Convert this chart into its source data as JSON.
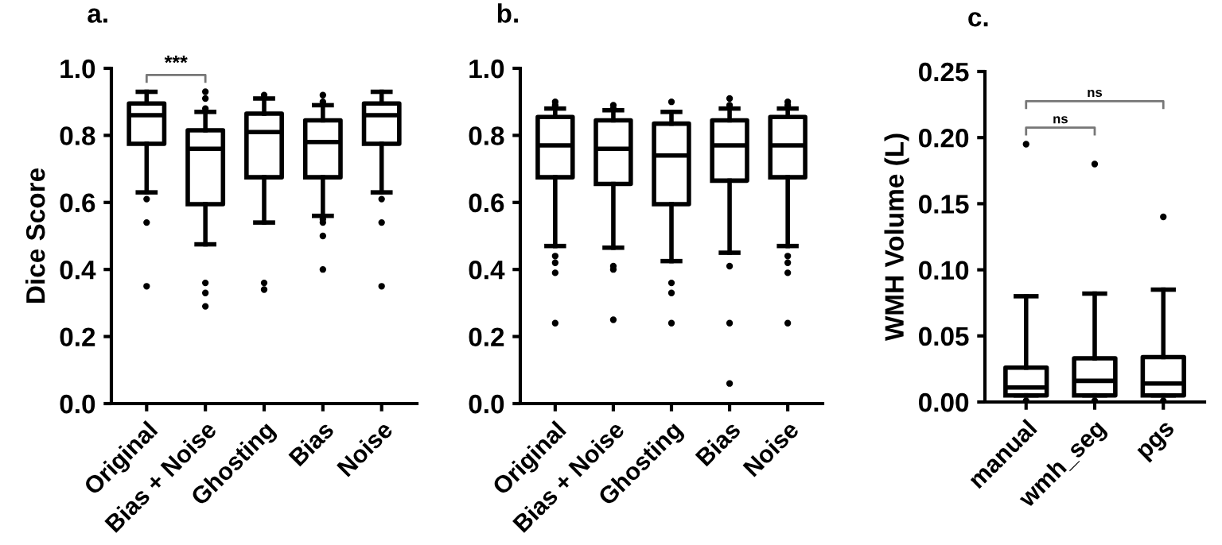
{
  "chart_data": [
    {
      "type": "box",
      "title": "a.",
      "ylabel": "Dice Score",
      "categories": [
        "Original",
        "Bias + Noise",
        "Ghosting",
        "Bias",
        "Noise"
      ],
      "ylim": [
        0,
        1.0
      ],
      "yticks": [
        {
          "value": 0,
          "label": "0.0"
        },
        0.2,
        0.4,
        0.6,
        0.8,
        {
          "value": 1,
          "label": "1.0"
        }
      ],
      "grid": false,
      "annotations": [
        "***"
      ],
      "boxes": [
        {
          "low": 0.63,
          "q1": 0.775,
          "median": 0.86,
          "q3": 0.895,
          "high": 0.93,
          "outliers": [
            0.61,
            0.54,
            0.35
          ]
        },
        {
          "low": 0.475,
          "q1": 0.595,
          "median": 0.76,
          "q3": 0.815,
          "high": 0.87,
          "outliers": [
            0.93,
            0.91,
            0.88,
            0.36,
            0.33,
            0.29
          ]
        },
        {
          "low": 0.54,
          "q1": 0.675,
          "median": 0.81,
          "q3": 0.865,
          "high": 0.91,
          "outliers": [
            0.92,
            0.36,
            0.34
          ]
        },
        {
          "low": 0.56,
          "q1": 0.675,
          "median": 0.78,
          "q3": 0.845,
          "high": 0.89,
          "outliers": [
            0.92,
            0.9,
            0.55,
            0.54,
            0.5,
            0.4
          ]
        },
        {
          "low": 0.63,
          "q1": 0.775,
          "median": 0.86,
          "q3": 0.895,
          "high": 0.93,
          "outliers": [
            0.61,
            0.54,
            0.35
          ]
        }
      ]
    },
    {
      "type": "box",
      "title": "b.",
      "categories": [
        "Original",
        "Bias + Noise",
        "Ghosting",
        "Bias",
        "Noise"
      ],
      "ylim": [
        0,
        1.0
      ],
      "yticks": [
        {
          "value": 0,
          "label": "0.0"
        },
        0.2,
        0.4,
        0.6,
        0.8,
        {
          "value": 1,
          "label": "1.0"
        }
      ],
      "grid": false,
      "boxes": [
        {
          "low": 0.47,
          "q1": 0.675,
          "median": 0.77,
          "q3": 0.855,
          "high": 0.88,
          "outliers": [
            0.9,
            0.89,
            0.44,
            0.42,
            0.39,
            0.24
          ]
        },
        {
          "low": 0.465,
          "q1": 0.655,
          "median": 0.76,
          "q3": 0.845,
          "high": 0.875,
          "outliers": [
            0.89,
            0.88,
            0.41,
            0.4,
            0.25
          ]
        },
        {
          "low": 0.425,
          "q1": 0.595,
          "median": 0.74,
          "q3": 0.835,
          "high": 0.87,
          "outliers": [
            0.9,
            0.36,
            0.33,
            0.24
          ]
        },
        {
          "low": 0.45,
          "q1": 0.665,
          "median": 0.77,
          "q3": 0.845,
          "high": 0.88,
          "outliers": [
            0.91,
            0.89,
            0.41,
            0.24,
            0.06
          ]
        },
        {
          "low": 0.47,
          "q1": 0.675,
          "median": 0.77,
          "q3": 0.855,
          "high": 0.88,
          "outliers": [
            0.9,
            0.89,
            0.44,
            0.42,
            0.39,
            0.24
          ]
        }
      ]
    },
    {
      "type": "box",
      "title": "c.",
      "ylabel": "WMH Volume (L)",
      "categories": [
        "manual",
        "wmh_seg",
        "pgs"
      ],
      "ylim": [
        0,
        0.25
      ],
      "yticks": [
        {
          "value": 0,
          "label": "0.00"
        },
        0.05,
        {
          "value": 0.1,
          "label": "0.10"
        },
        0.15,
        {
          "value": 0.2,
          "label": "0.20"
        },
        0.25
      ],
      "grid": false,
      "annotations": [
        "ns",
        "ns"
      ],
      "boxes": [
        {
          "low": 0.005,
          "q1": 0.005,
          "median": 0.011,
          "q3": 0.026,
          "high": 0.08,
          "outliers": [
            0.195,
            0.001
          ]
        },
        {
          "low": 0.005,
          "q1": 0.005,
          "median": 0.016,
          "q3": 0.033,
          "high": 0.082,
          "outliers": [
            0.18,
            0.001
          ]
        },
        {
          "low": 0.005,
          "q1": 0.005,
          "median": 0.014,
          "q3": 0.034,
          "high": 0.085,
          "outliers": [
            0.14,
            0.001
          ]
        }
      ]
    }
  ]
}
